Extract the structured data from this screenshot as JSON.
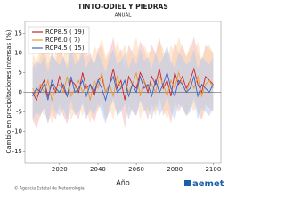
{
  "chart_data": {
    "type": "line",
    "title": "TINTO-ODIEL Y PIEDRAS",
    "subtitle": "ANUAL",
    "ylabel": "Cambio en precipitaciones intensas (%)",
    "xlabel": "Año",
    "x": [
      2006,
      2008,
      2010,
      2012,
      2014,
      2016,
      2018,
      2020,
      2022,
      2024,
      2026,
      2028,
      2030,
      2032,
      2034,
      2036,
      2038,
      2040,
      2042,
      2044,
      2046,
      2048,
      2050,
      2052,
      2054,
      2056,
      2058,
      2060,
      2062,
      2064,
      2066,
      2068,
      2070,
      2072,
      2074,
      2076,
      2078,
      2080,
      2082,
      2084,
      2086,
      2088,
      2090,
      2092,
      2094,
      2096,
      2098,
      2100
    ],
    "xlim": [
      2002,
      2104
    ],
    "xticks": [
      2020,
      2040,
      2060,
      2080,
      2100
    ],
    "ylim": [
      -18,
      18
    ],
    "yticks": [
      -15,
      -10,
      -5,
      0,
      5,
      10,
      15
    ],
    "legend": "upper left",
    "series": [
      {
        "name": "RCP8.5",
        "count_label": "( 19)",
        "color": "#cc2222",
        "band_color": "#f2b8b8",
        "values": [
          0,
          -2,
          1,
          3,
          -1,
          2,
          0,
          4,
          1,
          -1,
          3,
          2,
          0,
          5,
          1,
          2,
          -1,
          3,
          4,
          0,
          2,
          6,
          1,
          3,
          -2,
          4,
          2,
          1,
          5,
          3,
          0,
          4,
          2,
          6,
          1,
          3,
          -1,
          5,
          2,
          4,
          1,
          3,
          6,
          2,
          0,
          4,
          3,
          2
        ],
        "band_low": [
          -7,
          -9,
          -6,
          -4,
          -8,
          -5,
          -7,
          -3,
          -6,
          -8,
          -4,
          -5,
          -7,
          -2,
          -6,
          -5,
          -8,
          -4,
          -3,
          -7,
          -5,
          -1,
          -6,
          -4,
          -9,
          -3,
          -5,
          -6,
          -2,
          -4,
          -7,
          -3,
          -5,
          -1,
          -6,
          -4,
          -8,
          -2,
          -5,
          -3,
          -6,
          -4,
          -1,
          -5,
          -7,
          -3,
          -4,
          -5
        ],
        "band_high": [
          8,
          6,
          9,
          11,
          7,
          10,
          8,
          12,
          9,
          7,
          11,
          10,
          8,
          13,
          9,
          10,
          7,
          11,
          12,
          8,
          10,
          14,
          9,
          11,
          6,
          12,
          10,
          9,
          13,
          11,
          8,
          12,
          10,
          14,
          9,
          11,
          7,
          13,
          10,
          12,
          9,
          11,
          14,
          10,
          8,
          12,
          11,
          10
        ]
      },
      {
        "name": "RCP6.0",
        "count_label": "(  7)",
        "color": "#ee9933",
        "band_color": "#fbd9b0",
        "values": [
          1,
          -1,
          2,
          0,
          3,
          -2,
          1,
          2,
          0,
          4,
          -1,
          1,
          3,
          0,
          2,
          -2,
          3,
          1,
          5,
          0,
          2,
          -1,
          4,
          1,
          3,
          0,
          2,
          5,
          -1,
          3,
          1,
          2,
          0,
          4,
          2,
          -1,
          3,
          1,
          5,
          2,
          0,
          3,
          1,
          4,
          -1,
          2,
          3,
          1
        ],
        "band_low": [
          -5,
          -7,
          -4,
          -6,
          -3,
          -8,
          -5,
          -4,
          -6,
          -2,
          -7,
          -5,
          -3,
          -6,
          -4,
          -8,
          -3,
          -5,
          -1,
          -6,
          -4,
          -7,
          -2,
          -5,
          -3,
          -6,
          -4,
          -1,
          -7,
          -3,
          -5,
          -4,
          -6,
          -2,
          -4,
          -7,
          -3,
          -5,
          -1,
          -4,
          -6,
          -3,
          -5,
          -2,
          -7,
          -4,
          -3,
          -5
        ],
        "band_high": [
          10,
          8,
          11,
          9,
          12,
          7,
          10,
          11,
          9,
          13,
          8,
          10,
          12,
          9,
          11,
          7,
          12,
          10,
          14,
          9,
          11,
          8,
          13,
          10,
          12,
          9,
          11,
          14,
          8,
          12,
          10,
          11,
          9,
          13,
          11,
          8,
          12,
          10,
          14,
          11,
          9,
          12,
          10,
          13,
          8,
          11,
          12,
          10
        ]
      },
      {
        "name": "RCP4.5",
        "count_label": "( 15)",
        "color": "#3366cc",
        "band_color": "#b8cdf0",
        "values": [
          -1,
          1,
          0,
          2,
          -2,
          3,
          1,
          0,
          2,
          -1,
          4,
          0,
          1,
          3,
          -1,
          2,
          0,
          3,
          1,
          -2,
          2,
          4,
          0,
          1,
          3,
          -1,
          2,
          0,
          4,
          1,
          2,
          -1,
          3,
          0,
          2,
          5,
          1,
          -1,
          3,
          2,
          0,
          1,
          4,
          -1,
          2,
          1,
          0,
          2
        ],
        "band_low": [
          -7,
          -5,
          -6,
          -4,
          -8,
          -3,
          -5,
          -6,
          -4,
          -7,
          -2,
          -6,
          -5,
          -3,
          -7,
          -4,
          -6,
          -3,
          -5,
          -8,
          -4,
          -2,
          -6,
          -5,
          -3,
          -7,
          -4,
          -6,
          -2,
          -5,
          -4,
          -7,
          -3,
          -6,
          -4,
          -1,
          -5,
          -7,
          -3,
          -4,
          -6,
          -5,
          -2,
          -7,
          -4,
          -5,
          -6,
          -4
        ],
        "band_high": [
          6,
          8,
          7,
          9,
          5,
          10,
          8,
          7,
          9,
          6,
          11,
          7,
          8,
          10,
          6,
          9,
          7,
          10,
          8,
          5,
          9,
          11,
          7,
          8,
          10,
          6,
          9,
          7,
          11,
          8,
          9,
          6,
          10,
          7,
          9,
          12,
          8,
          6,
          10,
          9,
          7,
          8,
          11,
          6,
          9,
          8,
          7,
          9
        ]
      }
    ]
  },
  "footer": {
    "source": "© Agencia Estatal de Meteorología",
    "logo": "aemet"
  }
}
